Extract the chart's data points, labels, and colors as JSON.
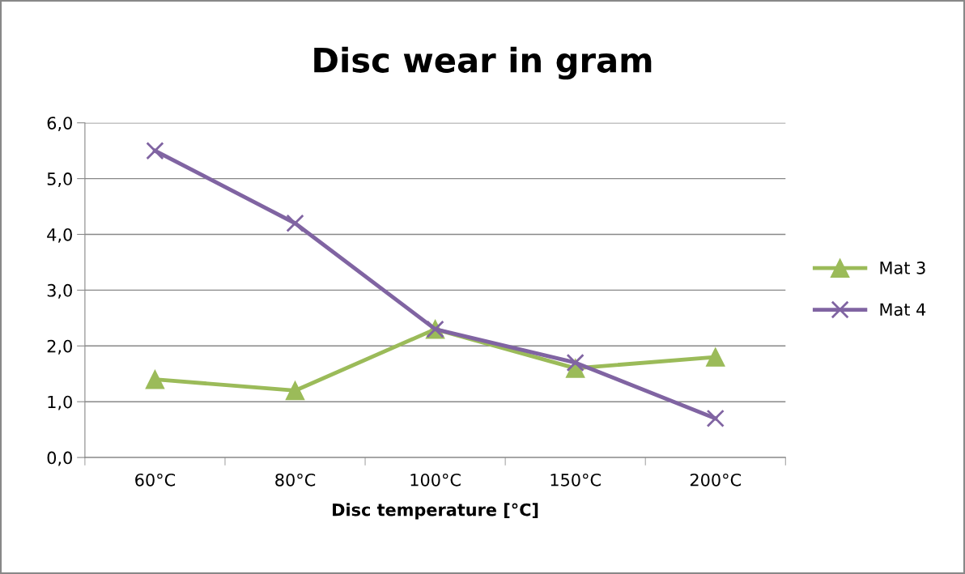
{
  "chart_data": {
    "type": "line",
    "title": "Disc wear in gram",
    "xlabel": "Disc temperature [°C]",
    "categories": [
      "60°C",
      "80°C",
      "100°C",
      "150°C",
      "200°C"
    ],
    "series": [
      {
        "name": "Mat 3",
        "color": "#9bbb59",
        "marker": "triangle",
        "values": [
          1.4,
          1.2,
          2.3,
          1.6,
          1.8
        ]
      },
      {
        "name": "Mat 4",
        "color": "#8064a2",
        "marker": "cross",
        "values": [
          5.5,
          4.2,
          2.3,
          1.7,
          0.7
        ]
      }
    ],
    "ylim": [
      0,
      6
    ],
    "yticks": [
      {
        "value": 0,
        "label": "0,0"
      },
      {
        "value": 1,
        "label": "1,0"
      },
      {
        "value": 2,
        "label": "2,0"
      },
      {
        "value": 3,
        "label": "3,0"
      },
      {
        "value": 4,
        "label": "4,0"
      },
      {
        "value": 5,
        "label": "5,0"
      },
      {
        "value": 6,
        "label": "6,0"
      }
    ],
    "grid": "y",
    "legend": "right",
    "line_style": "solid"
  }
}
